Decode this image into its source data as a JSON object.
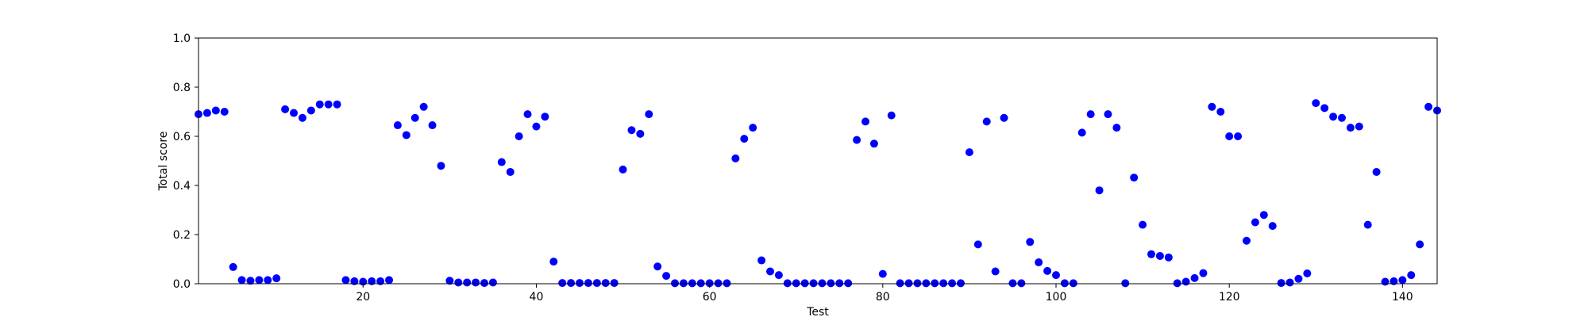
{
  "chart_data": {
    "type": "scatter",
    "xlabel": "Test",
    "ylabel": "Total score",
    "xlim": [
      1,
      144
    ],
    "ylim": [
      0.0,
      1.0
    ],
    "xticks": [
      20,
      40,
      60,
      80,
      100,
      120,
      140
    ],
    "yticks": [
      0.0,
      0.2,
      0.4,
      0.6,
      0.8,
      1.0
    ],
    "ytick_labels": [
      "0.0",
      "0.2",
      "0.4",
      "0.6",
      "0.8",
      "1.0"
    ],
    "grid": false,
    "color": "#0000ff",
    "x": [
      1,
      2,
      3,
      4,
      5,
      6,
      7,
      8,
      9,
      10,
      11,
      12,
      13,
      14,
      15,
      16,
      17,
      18,
      19,
      20,
      21,
      22,
      23,
      24,
      25,
      26,
      27,
      28,
      29,
      30,
      31,
      32,
      33,
      34,
      35,
      36,
      37,
      38,
      39,
      40,
      41,
      42,
      43,
      44,
      45,
      46,
      47,
      48,
      49,
      50,
      51,
      52,
      53,
      54,
      55,
      56,
      57,
      58,
      59,
      60,
      61,
      62,
      63,
      64,
      65,
      66,
      67,
      68,
      69,
      70,
      71,
      72,
      73,
      74,
      75,
      76,
      77,
      78,
      79,
      80,
      81,
      82,
      83,
      84,
      85,
      86,
      87,
      88,
      89,
      90,
      91,
      92,
      93,
      94,
      95,
      96,
      97,
      98,
      99,
      100,
      101,
      102,
      103,
      104,
      105,
      106,
      107,
      108,
      109,
      110,
      111,
      112,
      113,
      114,
      115,
      116,
      117,
      118,
      119,
      120,
      121,
      122,
      123,
      124,
      125,
      126,
      127,
      128,
      129,
      130,
      131,
      132,
      133,
      134,
      135,
      136,
      137,
      138,
      139,
      140,
      141,
      142,
      143,
      144
    ],
    "y": [
      0.69,
      0.695,
      0.705,
      0.7,
      0.068,
      0.015,
      0.012,
      0.015,
      0.015,
      0.022,
      0.71,
      0.695,
      0.675,
      0.705,
      0.73,
      0.73,
      0.73,
      0.015,
      0.01,
      0.008,
      0.01,
      0.01,
      0.015,
      0.645,
      0.605,
      0.675,
      0.72,
      0.645,
      0.48,
      0.012,
      0.005,
      0.005,
      0.005,
      0.003,
      0.005,
      0.495,
      0.455,
      0.6,
      0.69,
      0.64,
      0.68,
      0.09,
      0.003,
      0.003,
      0.003,
      0.003,
      0.003,
      0.003,
      0.003,
      0.465,
      0.625,
      0.61,
      0.69,
      0.07,
      0.032,
      0.002,
      0.002,
      0.002,
      0.002,
      0.002,
      0.002,
      0.002,
      0.51,
      0.59,
      0.635,
      0.095,
      0.05,
      0.035,
      0.002,
      0.002,
      0.002,
      0.002,
      0.002,
      0.002,
      0.002,
      0.002,
      0.585,
      0.66,
      0.57,
      0.04,
      0.685,
      0.002,
      0.002,
      0.002,
      0.002,
      0.002,
      0.002,
      0.002,
      0.002,
      0.535,
      0.16,
      0.66,
      0.05,
      0.675,
      0.002,
      0.002,
      0.17,
      0.087,
      0.052,
      0.035,
      0.002,
      0.002,
      0.615,
      0.69,
      0.38,
      0.69,
      0.635,
      0.002,
      0.432,
      0.24,
      0.12,
      0.113,
      0.107,
      0.002,
      0.008,
      0.023,
      0.043,
      0.72,
      0.7,
      0.6,
      0.6,
      0.175,
      0.25,
      0.28,
      0.235,
      0.003,
      0.005,
      0.02,
      0.042,
      0.735,
      0.715,
      0.68,
      0.675,
      0.635,
      0.64,
      0.24,
      0.455,
      0.008,
      0.01,
      0.015,
      0.035,
      0.16,
      0.72,
      0.705
    ]
  }
}
